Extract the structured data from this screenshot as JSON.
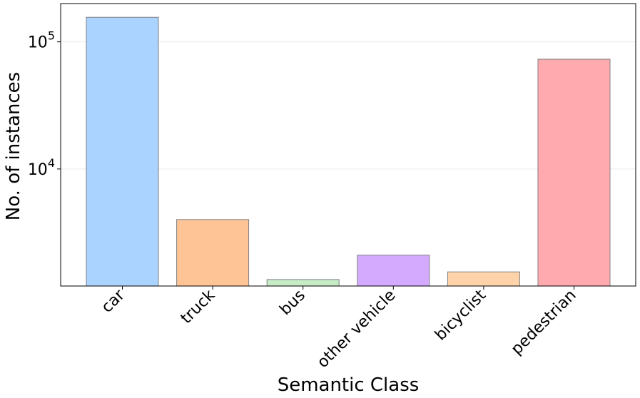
{
  "chart_data": {
    "type": "bar",
    "xlabel": "Semantic Class",
    "ylabel": "No. of instances",
    "yscale": "log",
    "ylim": [
      1200,
      200000
    ],
    "grid": "y-major",
    "categories": [
      "car",
      "truck",
      "bus",
      "other vehicle",
      "bicyclist",
      "pedestrian"
    ],
    "values": [
      156000,
      4000,
      1350,
      2100,
      1550,
      73000
    ],
    "colors": [
      "#aad4ff",
      "#ffc496",
      "#c6ebc5",
      "#d4aaff",
      "#ffd3aa",
      "#ffaaaf"
    ],
    "edge_color": "#808080",
    "y_ticks": [
      {
        "value": 100000,
        "base": "10",
        "exp": "5"
      },
      {
        "value": 10000,
        "base": "10",
        "exp": "4"
      }
    ]
  }
}
